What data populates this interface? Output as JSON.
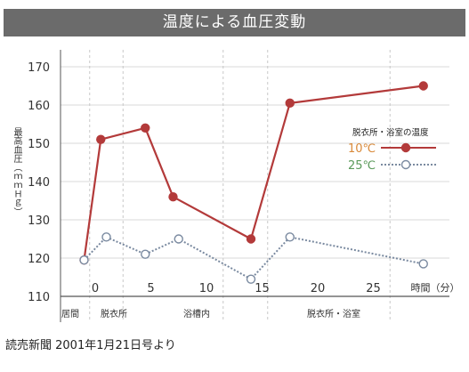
{
  "title": "温度による血圧変動",
  "source": "読売新聞 2001年1月21日号より",
  "colors": {
    "series_10": "#b33a3a",
    "series_25": "#7a8aa0",
    "grid": "#d9d9d9",
    "axis": "#444444",
    "legend_10": "#d98a3a",
    "legend_25": "#5a9a5a"
  },
  "chart_data": {
    "type": "line",
    "title": "温度による血圧変動",
    "ylabel": "最高血圧（ｍｍＨｇ）",
    "xlabel": "時間（分）",
    "ylim": [
      110,
      170
    ],
    "yticks": [
      "110",
      "120",
      "130",
      "140",
      "150",
      "160",
      "170"
    ],
    "xticks": [
      "0",
      "5",
      "10",
      "15",
      "20",
      "25"
    ],
    "xunit": "時間（分）",
    "phases": [
      "居間",
      "脱衣所",
      "浴槽内",
      "脱衣所・浴室"
    ],
    "legend_title": "脱衣所・浴室の温度",
    "grid": true,
    "legend_position": "right",
    "series": [
      {
        "name": "10℃",
        "points": [
          {
            "x": -1,
            "y": 119.5
          },
          {
            "x": 0.5,
            "y": 151
          },
          {
            "x": 4.5,
            "y": 154
          },
          {
            "x": 7,
            "y": 136
          },
          {
            "x": 14,
            "y": 125
          },
          {
            "x": 17.5,
            "y": 160.5
          },
          {
            "x": 29.5,
            "y": 165
          }
        ]
      },
      {
        "name": "25℃",
        "points": [
          {
            "x": -1,
            "y": 119.5
          },
          {
            "x": 1,
            "y": 125.5
          },
          {
            "x": 4.5,
            "y": 121
          },
          {
            "x": 7.5,
            "y": 125
          },
          {
            "x": 14,
            "y": 114.5
          },
          {
            "x": 17.5,
            "y": 125.5
          },
          {
            "x": 29.5,
            "y": 118.5
          }
        ]
      }
    ]
  }
}
